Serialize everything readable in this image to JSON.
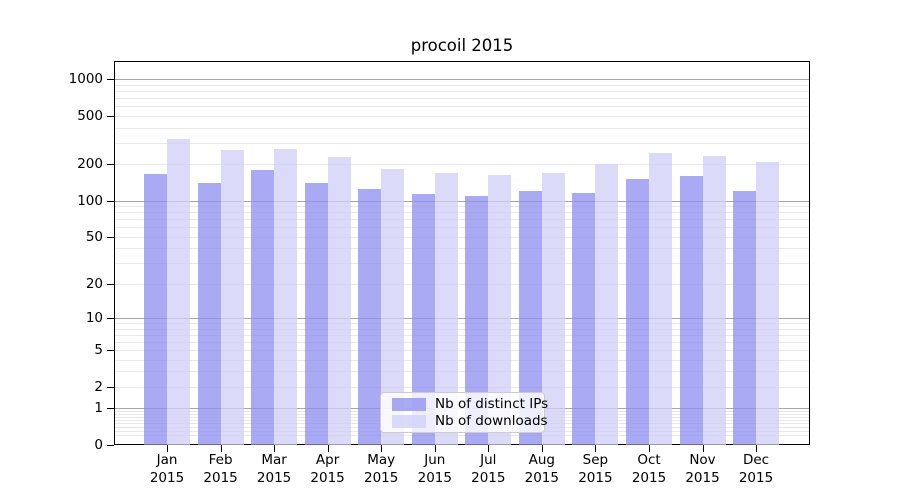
{
  "chart_data": {
    "type": "bar",
    "title": "procoil 2015",
    "categories": [
      "Jan",
      "Feb",
      "Mar",
      "Apr",
      "May",
      "Jun",
      "Jul",
      "Aug",
      "Sep",
      "Oct",
      "Nov",
      "Dec"
    ],
    "category_year": "2015",
    "series": [
      {
        "name": "Nb of distinct IPs",
        "color": "#a9a9f4",
        "fill": "rgba(140,140,240,0.75)",
        "values": [
          165,
          141,
          181,
          140,
          126,
          113,
          109,
          120,
          115,
          150,
          161,
          120
        ]
      },
      {
        "name": "Nb of downloads",
        "color": "#dbdbf9",
        "fill": "rgba(207,207,247,0.75)",
        "values": [
          322,
          264,
          269,
          230,
          184,
          170,
          162,
          168,
          200,
          248,
          233,
          209
        ]
      }
    ],
    "y_ticks": [
      0,
      1,
      2,
      5,
      10,
      20,
      50,
      100,
      200,
      500,
      1000
    ],
    "y_scale": "log10(value+1)",
    "ylim": [
      0,
      1400
    ],
    "grid": true,
    "legend_position": "lower center inside plot",
    "colors": {
      "grid_minor": "#e8e8e8",
      "grid_major": "#a6a6a6",
      "axis": "#000000",
      "background": "#ffffff"
    }
  }
}
